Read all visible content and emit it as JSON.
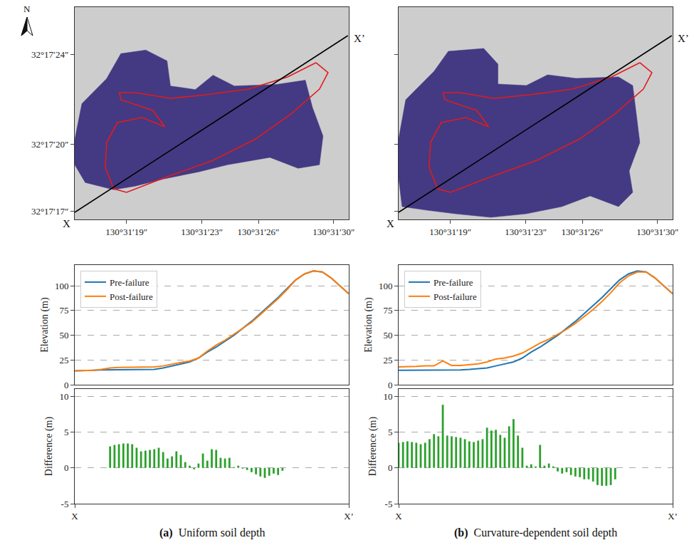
{
  "chart_data": [
    {
      "type": "map",
      "xlim": [
        130.521181,
        130.525222
      ],
      "ylim": [
        32.287958,
        32.290583
      ],
      "xticks": [
        {
          "value": 130.521944,
          "label": "130°31′19″"
        },
        {
          "value": 130.523056,
          "label": "130°31′23″"
        },
        {
          "value": 130.523889,
          "label": "130°31′26″"
        },
        {
          "value": 130.525,
          "label": "130°31′30″"
        }
      ],
      "yticks": [
        {
          "value": 32.288056,
          "label": "32°17′17″"
        },
        {
          "value": 32.288889,
          "label": "32°17′20″"
        },
        {
          "value": 32.29,
          "label": "32°17′24″"
        }
      ],
      "series": [
        {
          "type": "area",
          "color": "#433a83",
          "x": [
            130.521181,
            130.521286,
            130.52165,
            130.521861,
            130.522228,
            130.522542,
            130.522592,
            130.522959,
            130.52322,
            130.523534,
            130.524161,
            130.524581,
            130.524686,
            130.524842,
            130.524789,
            130.524475,
            130.524059,
            130.523431,
            130.523011,
            130.522489,
            130.52207,
            130.521756,
            130.521336,
            130.521181
          ],
          "y": [
            32.288944,
            32.289389,
            32.289697,
            32.290008,
            32.290052,
            32.289919,
            32.289608,
            32.289564,
            32.289741,
            32.289608,
            32.289627,
            32.28968,
            32.289344,
            32.288989,
            32.288633,
            32.288591,
            32.288725,
            32.288633,
            32.288547,
            32.288458,
            32.288369,
            32.288325,
            32.288414,
            32.288633
          ]
        },
        {
          "type": "line",
          "color": "#e41a1c",
          "x": [
            130.524738,
            130.52432,
            130.523744,
            130.523116,
            130.522593,
            130.52207,
            130.52184,
            130.521861,
            130.522332,
            130.52251,
            130.522175,
            130.521809,
            130.521652,
            130.521631,
            130.521756,
            130.521945,
            130.522489,
            130.523221,
            130.523849,
            130.524372,
            130.52479,
            130.524916,
            130.524738
          ],
          "y": [
            32.289896,
            32.28972,
            32.28957,
            32.289499,
            32.289455,
            32.289526,
            32.289526,
            32.289438,
            32.289306,
            32.289103,
            32.289218,
            32.289156,
            32.288909,
            32.288601,
            32.288337,
            32.288293,
            32.288469,
            32.288689,
            32.288953,
            32.289262,
            32.28957,
            32.289773,
            32.289896
          ]
        },
        {
          "type": "line",
          "color": "#000000",
          "x": [
            130.521181,
            130.525209
          ],
          "y": [
            32.288046,
            32.290231
          ]
        }
      ],
      "annotations": [
        {
          "text": "X",
          "x": 130.521181,
          "y": 32.288046
        },
        {
          "text": "X’",
          "x": 130.525209,
          "y": 32.290231
        }
      ]
    },
    {
      "type": "map",
      "tick_labels": "x",
      "xlim": [
        130.521181,
        130.525222
      ],
      "ylim": [
        32.287958,
        32.290583
      ],
      "xticks": [
        {
          "value": 130.521944,
          "label": "130°31′19″"
        },
        {
          "value": 130.523056,
          "label": "130°31′23″"
        },
        {
          "value": 130.523889,
          "label": "130°31′26″"
        },
        {
          "value": 130.525,
          "label": "130°31′30″"
        }
      ],
      "yticks": [
        {
          "value": 32.288056,
          "label": "32°17′17″"
        },
        {
          "value": 32.288889,
          "label": "32°17′20″"
        },
        {
          "value": 32.29,
          "label": "32°17′24″"
        }
      ],
      "series": [
        {
          "type": "area",
          "color": "#433a83",
          "x": [
            130.521181,
            130.521286,
            130.521704,
            130.521914,
            130.522436,
            130.522646,
            130.522646,
            130.523064,
            130.523378,
            130.523797,
            130.524424,
            130.524633,
            130.524686,
            130.524738,
            130.524581,
            130.524633,
            130.524424,
            130.524006,
            130.523587,
            130.523064,
            130.522541,
            130.522018,
            130.521599,
            130.521233,
            130.521181
          ],
          "y": [
            32.288953,
            32.289438,
            32.28979,
            32.290037,
            32.290072,
            32.289878,
            32.289632,
            32.289614,
            32.289746,
            32.289702,
            32.28972,
            32.289614,
            32.289262,
            32.288909,
            32.288557,
            32.288293,
            32.288116,
            32.288249,
            32.288116,
            32.288028,
            32.287984,
            32.288028,
            32.288072,
            32.288116,
            32.288469
          ]
        },
        {
          "type": "line",
          "color": "#e41a1c",
          "x": [
            130.524738,
            130.52432,
            130.523744,
            130.523116,
            130.522593,
            130.52207,
            130.52184,
            130.521861,
            130.522332,
            130.52251,
            130.522175,
            130.521809,
            130.521652,
            130.521631,
            130.521756,
            130.521945,
            130.522489,
            130.523221,
            130.523849,
            130.524372,
            130.52479,
            130.524916,
            130.524738
          ],
          "y": [
            32.289896,
            32.28972,
            32.28957,
            32.289499,
            32.289455,
            32.289526,
            32.289526,
            32.289438,
            32.289306,
            32.289103,
            32.289218,
            32.289156,
            32.288909,
            32.288601,
            32.288337,
            32.288293,
            32.288469,
            32.288689,
            32.288953,
            32.289262,
            32.28957,
            32.289773,
            32.289896
          ]
        },
        {
          "type": "line",
          "color": "#000000",
          "x": [
            130.521181,
            130.525209
          ],
          "y": [
            32.288046,
            32.290231
          ]
        }
      ],
      "annotations": [
        {
          "text": "X",
          "x": 130.521181,
          "y": 32.288046
        },
        {
          "text": "X’",
          "x": 130.525209,
          "y": 32.290231
        }
      ]
    },
    {
      "type": "line",
      "ylabel": "Elevation (m)",
      "tick_labels": "y",
      "grid": true,
      "legend": "upper left",
      "xlim": [
        0,
        62
      ],
      "ylim": [
        0,
        121
      ],
      "yticks": [
        0,
        25,
        50,
        75,
        100
      ],
      "x": [
        0,
        2,
        4,
        6,
        8,
        10,
        12,
        14,
        16,
        18,
        20,
        22,
        24,
        26,
        28,
        30,
        32,
        34,
        36,
        38,
        40,
        42,
        44,
        46,
        48,
        50,
        52,
        54,
        56,
        58,
        60,
        62
      ],
      "series": [
        {
          "name": "Pre-failure",
          "color": "#1f77b4",
          "values": [
            14,
            14,
            14.5,
            15,
            15,
            15,
            15,
            15,
            15,
            15.5,
            17,
            19,
            21,
            23,
            27,
            33,
            38,
            44,
            50,
            57,
            64,
            72,
            80,
            88,
            97,
            106,
            112,
            115,
            114,
            108,
            100,
            92
          ]
        },
        {
          "name": "Post-failure",
          "color": "#ff7f0e",
          "values": [
            14,
            14,
            14.5,
            15.5,
            17,
            17.5,
            17.5,
            17.5,
            18,
            18,
            19,
            21,
            22.5,
            24,
            27,
            34,
            40,
            45,
            51,
            57,
            63,
            71,
            79,
            87,
            96,
            106,
            112,
            115,
            114,
            108,
            100,
            92
          ]
        }
      ]
    },
    {
      "type": "line",
      "ylabel": "Elevation (m)",
      "tick_labels": "y",
      "grid": true,
      "legend": "upper left",
      "xlim": [
        0,
        62
      ],
      "ylim": [
        0,
        121
      ],
      "yticks": [
        0,
        25,
        50,
        75,
        100
      ],
      "x": [
        0,
        2,
        4,
        6,
        8,
        10,
        12,
        14,
        16,
        18,
        20,
        22,
        24,
        26,
        28,
        30,
        32,
        34,
        36,
        38,
        40,
        42,
        44,
        46,
        48,
        50,
        52,
        54,
        56,
        58,
        60,
        62
      ],
      "series": [
        {
          "name": "Pre-failure",
          "color": "#1f77b4",
          "values": [
            14.5,
            14.5,
            15,
            15,
            14.5,
            14.5,
            14.5,
            15,
            15.5,
            16,
            17,
            19,
            21,
            23,
            27,
            33,
            38,
            44,
            50,
            57,
            64,
            72,
            80,
            88,
            97,
            106,
            112,
            115,
            114,
            108,
            100,
            92
          ]
        },
        {
          "name": "Post-failure",
          "color": "#ff7f0e",
          "values": [
            18,
            18,
            18.5,
            19,
            19,
            24,
            19.5,
            19.5,
            20,
            21,
            23,
            26,
            27,
            29,
            32,
            37,
            42,
            46,
            51,
            56,
            62,
            69,
            76,
            84,
            93,
            103,
            110,
            114,
            114,
            108,
            100,
            92
          ]
        }
      ]
    },
    {
      "type": "bar",
      "ylabel": "Difference (m)",
      "grid": true,
      "color": "#2ca02c",
      "xlim": [
        0,
        62
      ],
      "ylim": [
        -5,
        11
      ],
      "xticks": [
        {
          "value": 0,
          "label": "X"
        },
        {
          "value": 62,
          "label": "X’"
        }
      ],
      "yticks": [
        -5,
        0,
        5,
        10
      ],
      "x": [
        8,
        9,
        10,
        11,
        12,
        13,
        14,
        15,
        16,
        17,
        18,
        19,
        20,
        21,
        22,
        23,
        24,
        25,
        26,
        27,
        28,
        29,
        30,
        31,
        32,
        33,
        34,
        35,
        36,
        37,
        38,
        39,
        40,
        41,
        42,
        43,
        44,
        45,
        46,
        47
      ],
      "values": [
        3.0,
        3.2,
        3.3,
        3.4,
        3.4,
        3.3,
        2.8,
        2.3,
        2.4,
        2.5,
        2.6,
        2.8,
        2.2,
        1.3,
        1.6,
        2.3,
        1.8,
        0.8,
        0.3,
        -0.2,
        0.6,
        2.0,
        1.0,
        2.6,
        2.5,
        1.4,
        1.3,
        1.4,
        0.1,
        0.3,
        -0.1,
        -0.3,
        -0.6,
        -0.9,
        -1.2,
        -1.4,
        -1.1,
        -0.8,
        -1.0,
        -0.4
      ]
    },
    {
      "type": "bar",
      "ylabel": "Difference (m)",
      "grid": true,
      "color": "#2ca02c",
      "xlim": [
        0,
        62
      ],
      "ylim": [
        -5,
        11
      ],
      "xticks": [
        {
          "value": 0,
          "label": "X"
        },
        {
          "value": 62,
          "label": "X’"
        }
      ],
      "yticks": [
        -5,
        0,
        5,
        10
      ],
      "x": [
        0,
        1,
        2,
        3,
        4,
        5,
        6,
        7,
        8,
        9,
        10,
        11,
        12,
        13,
        14,
        15,
        16,
        17,
        18,
        19,
        20,
        21,
        22,
        23,
        24,
        25,
        26,
        27,
        28,
        29,
        30,
        31,
        32,
        33,
        34,
        35,
        36,
        37,
        38,
        39,
        40,
        41,
        42,
        43,
        44,
        45,
        46,
        47,
        48,
        49
      ],
      "values": [
        3.5,
        3.6,
        3.7,
        3.6,
        3.5,
        3.3,
        3.5,
        4.0,
        4.7,
        4.4,
        8.8,
        4.5,
        4.4,
        4.3,
        4.2,
        4.0,
        3.7,
        3.6,
        3.8,
        4.0,
        5.6,
        5.2,
        5.3,
        4.6,
        4.2,
        5.8,
        6.8,
        4.5,
        2.8,
        0.3,
        0.5,
        0.2,
        3.2,
        0.3,
        0.6,
        0.2,
        -0.5,
        -0.8,
        -0.6,
        -1.0,
        -1.2,
        -1.3,
        -1.6,
        -1.6,
        -1.9,
        -2.4,
        -2.5,
        -2.5,
        -2.4,
        -1.6
      ]
    }
  ],
  "captions": [
    {
      "label": "(a)",
      "text": "Uniform soil depth"
    },
    {
      "label": "(b)",
      "text": "Curvature-dependent soil depth"
    }
  ],
  "north_label": "N"
}
